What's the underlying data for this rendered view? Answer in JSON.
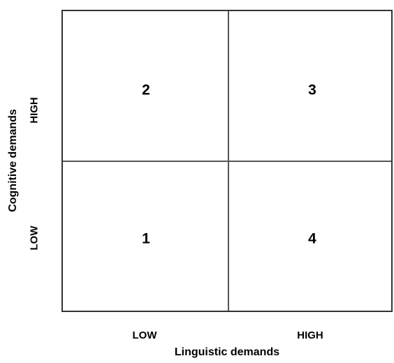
{
  "matrix": {
    "quadrants": {
      "top_left": "2",
      "top_right": "3",
      "bottom_left": "1",
      "bottom_right": "4"
    }
  },
  "x_axis": {
    "label": "Linguistic demands",
    "low": "LOW",
    "high": "HIGH"
  },
  "y_axis": {
    "label": "Cognitive demands",
    "low": "LOW",
    "high": "HIGH"
  }
}
